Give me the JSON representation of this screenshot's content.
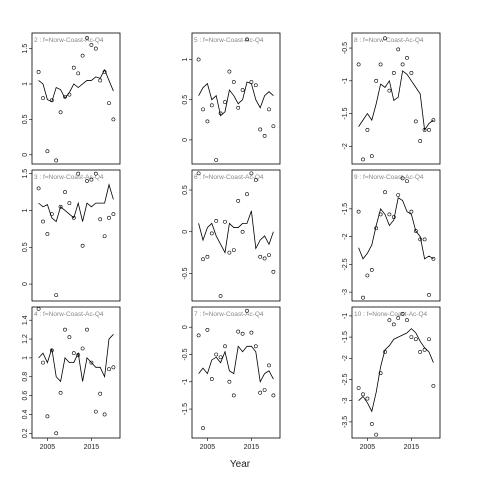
{
  "xlabel": "Year",
  "chart_data": [
    {
      "type": "scatter",
      "title": "2 : f=Norw-Coast-Ac-Q4",
      "x": [
        2003,
        2004,
        2005,
        2006,
        2007,
        2008,
        2009,
        2010,
        2011,
        2012,
        2013,
        2014,
        2015,
        2016,
        2017,
        2018,
        2019,
        2020
      ],
      "xlim": [
        2001.5,
        2021.5
      ],
      "ylim": [
        -0.13,
        1.72
      ],
      "yticks": [
        0.0,
        0.5,
        1.0,
        1.5
      ],
      "series": [
        {
          "style": "points",
          "color": "#000000",
          "values": [
            1.17,
            0.8,
            0.05,
            0.77,
            -0.08,
            0.6,
            0.82,
            0.85,
            1.23,
            1.15,
            1.4,
            1.65,
            1.55,
            1.5,
            1.05,
            1.17,
            0.73,
            0.5
          ]
        },
        {
          "style": "line",
          "color": "#000000",
          "values": [
            1.05,
            1.0,
            0.78,
            0.75,
            0.95,
            0.92,
            0.8,
            0.88,
            1.0,
            0.95,
            1.0,
            1.05,
            1.05,
            1.1,
            1.08,
            1.2,
            1.05,
            0.9
          ]
        }
      ]
    },
    {
      "type": "scatter",
      "title": "5 : f=Norw-Coast-Ac-Q4",
      "x": [
        2003,
        2004,
        2005,
        2006,
        2007,
        2008,
        2009,
        2010,
        2011,
        2012,
        2013,
        2014,
        2015,
        2016,
        2017,
        2018,
        2019,
        2020
      ],
      "xlim": [
        2001.5,
        2021.5
      ],
      "ylim": [
        -0.3,
        1.33
      ],
      "yticks": [
        0.0,
        0.5,
        1.0
      ],
      "series": [
        {
          "style": "points",
          "color": "#000000",
          "values": [
            1.0,
            0.38,
            0.23,
            0.43,
            -0.25,
            0.33,
            0.47,
            0.85,
            0.72,
            0.4,
            0.62,
            1.25,
            0.72,
            0.68,
            0.13,
            0.05,
            0.38,
            0.17
          ]
        },
        {
          "style": "line",
          "color": "#000000",
          "values": [
            0.55,
            0.65,
            0.7,
            0.5,
            0.55,
            0.3,
            0.35,
            0.62,
            0.55,
            0.45,
            0.5,
            0.72,
            0.7,
            0.5,
            0.4,
            0.55,
            0.6,
            0.55
          ]
        }
      ]
    },
    {
      "type": "scatter",
      "title": "8 : f=Norw-Coast-Ac-Q4",
      "x": [
        2003,
        2004,
        2005,
        2006,
        2007,
        2008,
        2009,
        2010,
        2011,
        2012,
        2013,
        2014,
        2015,
        2016,
        2017,
        2018,
        2019,
        2020
      ],
      "xlim": [
        2001.5,
        2021.5
      ],
      "ylim": [
        -2.27,
        -0.27
      ],
      "yticks": [
        -2.0,
        -1.5,
        -1.0,
        -0.5
      ],
      "series": [
        {
          "style": "points",
          "color": "#000000",
          "values": [
            -0.75,
            -2.2,
            -1.75,
            -2.15,
            -1.0,
            -0.75,
            -0.35,
            -1.15,
            -0.88,
            -0.52,
            -0.75,
            -0.65,
            -0.88,
            -1.62,
            -1.92,
            -1.75,
            -1.75,
            -1.6
          ]
        },
        {
          "style": "line",
          "color": "#000000",
          "values": [
            -1.7,
            -1.6,
            -1.5,
            -1.6,
            -1.35,
            -1.05,
            -1.1,
            -1.0,
            -1.3,
            -1.25,
            -0.85,
            -0.9,
            -1.0,
            -1.1,
            -1.2,
            -1.75,
            -1.65,
            -1.6
          ]
        }
      ]
    },
    {
      "type": "scatter",
      "title": "3 : f=Norw-Coast-Ac-Q4",
      "x": [
        2003,
        2004,
        2005,
        2006,
        2007,
        2008,
        2009,
        2010,
        2011,
        2012,
        2013,
        2014,
        2015,
        2016,
        2017,
        2018,
        2019,
        2020
      ],
      "xlim": [
        2001.5,
        2021.5
      ],
      "ylim": [
        -0.23,
        1.55
      ],
      "yticks": [
        0.0,
        0.5,
        1.0,
        1.5
      ],
      "series": [
        {
          "style": "points",
          "color": "#000000",
          "values": [
            1.3,
            0.85,
            0.68,
            0.95,
            -0.15,
            1.05,
            1.25,
            1.1,
            0.9,
            1.5,
            0.52,
            1.4,
            1.42,
            1.5,
            0.88,
            0.65,
            0.9,
            0.95
          ]
        },
        {
          "style": "line",
          "color": "#000000",
          "values": [
            1.1,
            1.05,
            1.08,
            0.9,
            0.85,
            1.05,
            1.0,
            0.95,
            0.9,
            1.1,
            0.85,
            1.1,
            1.05,
            1.1,
            1.1,
            1.1,
            1.35,
            1.15
          ]
        }
      ]
    },
    {
      "type": "scatter",
      "title": "6 : f=Norw-Coast-Ac-Q4",
      "x": [
        2003,
        2004,
        2005,
        2006,
        2007,
        2008,
        2009,
        2010,
        2011,
        2012,
        2013,
        2014,
        2015,
        2016,
        2017,
        2018,
        2019,
        2020
      ],
      "xlim": [
        2001.5,
        2021.5
      ],
      "ylim": [
        -0.83,
        0.74
      ],
      "yticks": [
        -0.5,
        0.0,
        0.5
      ],
      "series": [
        {
          "style": "points",
          "color": "#000000",
          "values": [
            0.7,
            -0.33,
            -0.3,
            -0.02,
            0.13,
            -0.77,
            0.12,
            -0.25,
            -0.22,
            0.37,
            0.0,
            0.45,
            0.7,
            0.62,
            -0.3,
            -0.32,
            -0.28,
            -0.48
          ]
        },
        {
          "style": "line",
          "color": "#000000",
          "values": [
            0.1,
            -0.1,
            0.05,
            0.1,
            -0.05,
            -0.15,
            -0.25,
            0.1,
            0.05,
            0.05,
            0.1,
            0.1,
            0.25,
            -0.2,
            -0.1,
            -0.05,
            -0.15,
            0.0
          ]
        }
      ]
    },
    {
      "type": "scatter",
      "title": "9 : f=Norw-Coast-Ac-Q4",
      "x": [
        2003,
        2004,
        2005,
        2006,
        2007,
        2008,
        2009,
        2010,
        2011,
        2012,
        2013,
        2014,
        2015,
        2016,
        2017,
        2018,
        2019,
        2020
      ],
      "xlim": [
        2001.5,
        2021.5
      ],
      "ylim": [
        -3.16,
        -0.8
      ],
      "yticks": [
        -3.0,
        -2.5,
        -2.0,
        -1.5
      ],
      "series": [
        {
          "style": "points",
          "color": "#000000",
          "values": [
            -1.55,
            -3.1,
            -2.7,
            -2.6,
            -1.85,
            -1.6,
            -1.2,
            -1.6,
            -1.65,
            -1.25,
            -0.95,
            -1.0,
            -1.55,
            -1.9,
            -2.05,
            -2.05,
            -3.05,
            -2.4
          ]
        },
        {
          "style": "line",
          "color": "#000000",
          "values": [
            -2.2,
            -2.4,
            -2.3,
            -2.15,
            -1.8,
            -1.5,
            -1.6,
            -1.8,
            -1.7,
            -1.3,
            -1.35,
            -1.55,
            -1.6,
            -1.9,
            -2.0,
            -2.4,
            -2.35,
            -2.4
          ]
        }
      ]
    },
    {
      "type": "scatter",
      "title": "4 : f=Norw-Coast-Ac-Q4",
      "x": [
        2003,
        2004,
        2005,
        2006,
        2007,
        2008,
        2009,
        2010,
        2011,
        2012,
        2013,
        2014,
        2015,
        2016,
        2017,
        2018,
        2019,
        2020
      ],
      "xlim": [
        2001.5,
        2021.5
      ],
      "xticks": [
        2005,
        2015
      ],
      "ylim": [
        0.15,
        1.54
      ],
      "yticks": [
        0.2,
        0.4,
        0.6,
        0.8,
        1.0,
        1.2,
        1.4
      ],
      "series": [
        {
          "style": "points",
          "color": "#000000",
          "values": [
            1.52,
            0.95,
            0.38,
            1.08,
            0.2,
            0.63,
            1.3,
            1.22,
            1.05,
            1.03,
            1.1,
            1.3,
            0.95,
            0.43,
            0.62,
            0.4,
            0.88,
            0.9
          ]
        },
        {
          "style": "line",
          "color": "#000000",
          "values": [
            1.0,
            1.05,
            0.95,
            1.1,
            0.8,
            0.75,
            1.0,
            0.95,
            0.95,
            1.05,
            0.75,
            1.0,
            0.95,
            0.9,
            0.9,
            0.8,
            1.2,
            1.25
          ]
        }
      ]
    },
    {
      "type": "scatter",
      "title": "7 : f=Norw-Coast-Ac-Q4",
      "x": [
        2003,
        2004,
        2005,
        2006,
        2007,
        2008,
        2009,
        2010,
        2011,
        2012,
        2013,
        2014,
        2015,
        2016,
        2017,
        2018,
        2019,
        2020
      ],
      "xlim": [
        2001.5,
        2021.5
      ],
      "xticks": [
        2005,
        2015
      ],
      "ylim": [
        -2.03,
        0.37
      ],
      "yticks": [
        -1.5,
        -1.0,
        -0.5,
        0.0
      ],
      "series": [
        {
          "style": "points",
          "color": "#000000",
          "values": [
            -0.15,
            -1.85,
            -0.05,
            -0.95,
            -0.5,
            -0.55,
            -0.35,
            -1.0,
            -1.25,
            -0.08,
            -0.12,
            0.3,
            -0.1,
            -0.35,
            -1.2,
            -1.15,
            -0.7,
            -1.25
          ]
        },
        {
          "style": "line",
          "color": "#000000",
          "values": [
            -0.85,
            -0.75,
            -0.85,
            -0.6,
            -0.55,
            -0.65,
            -0.45,
            -0.8,
            -0.85,
            -0.35,
            -0.45,
            -0.35,
            -0.35,
            -0.45,
            -1.0,
            -0.85,
            -0.8,
            -0.95
          ]
        }
      ]
    },
    {
      "type": "scatter",
      "title": "10 : f=Norw-Coast-Ac-Q4",
      "x": [
        2003,
        2004,
        2005,
        2006,
        2007,
        2008,
        2009,
        2010,
        2011,
        2012,
        2013,
        2014,
        2015,
        2016,
        2017,
        2018,
        2019,
        2020
      ],
      "xlim": [
        2001.5,
        2021.5
      ],
      "xticks": [
        2005,
        2015
      ],
      "ylim": [
        -3.88,
        -0.79
      ],
      "yticks": [
        -3.5,
        -3.0,
        -2.5,
        -2.0,
        -1.5,
        -1.0
      ],
      "series": [
        {
          "style": "points",
          "color": "#000000",
          "values": [
            -2.7,
            -2.85,
            -2.95,
            -3.55,
            -3.8,
            -2.35,
            -1.85,
            -1.1,
            -1.2,
            -1.05,
            -0.95,
            -1.1,
            -1.5,
            -1.55,
            -1.85,
            -1.8,
            -1.55,
            -2.65
          ]
        },
        {
          "style": "line",
          "color": "#000000",
          "values": [
            -3.0,
            -2.9,
            -3.05,
            -3.25,
            -2.8,
            -2.2,
            -1.8,
            -1.7,
            -1.55,
            -1.5,
            -1.45,
            -1.4,
            -1.3,
            -1.4,
            -1.6,
            -1.75,
            -1.85,
            -2.1
          ]
        }
      ]
    }
  ]
}
